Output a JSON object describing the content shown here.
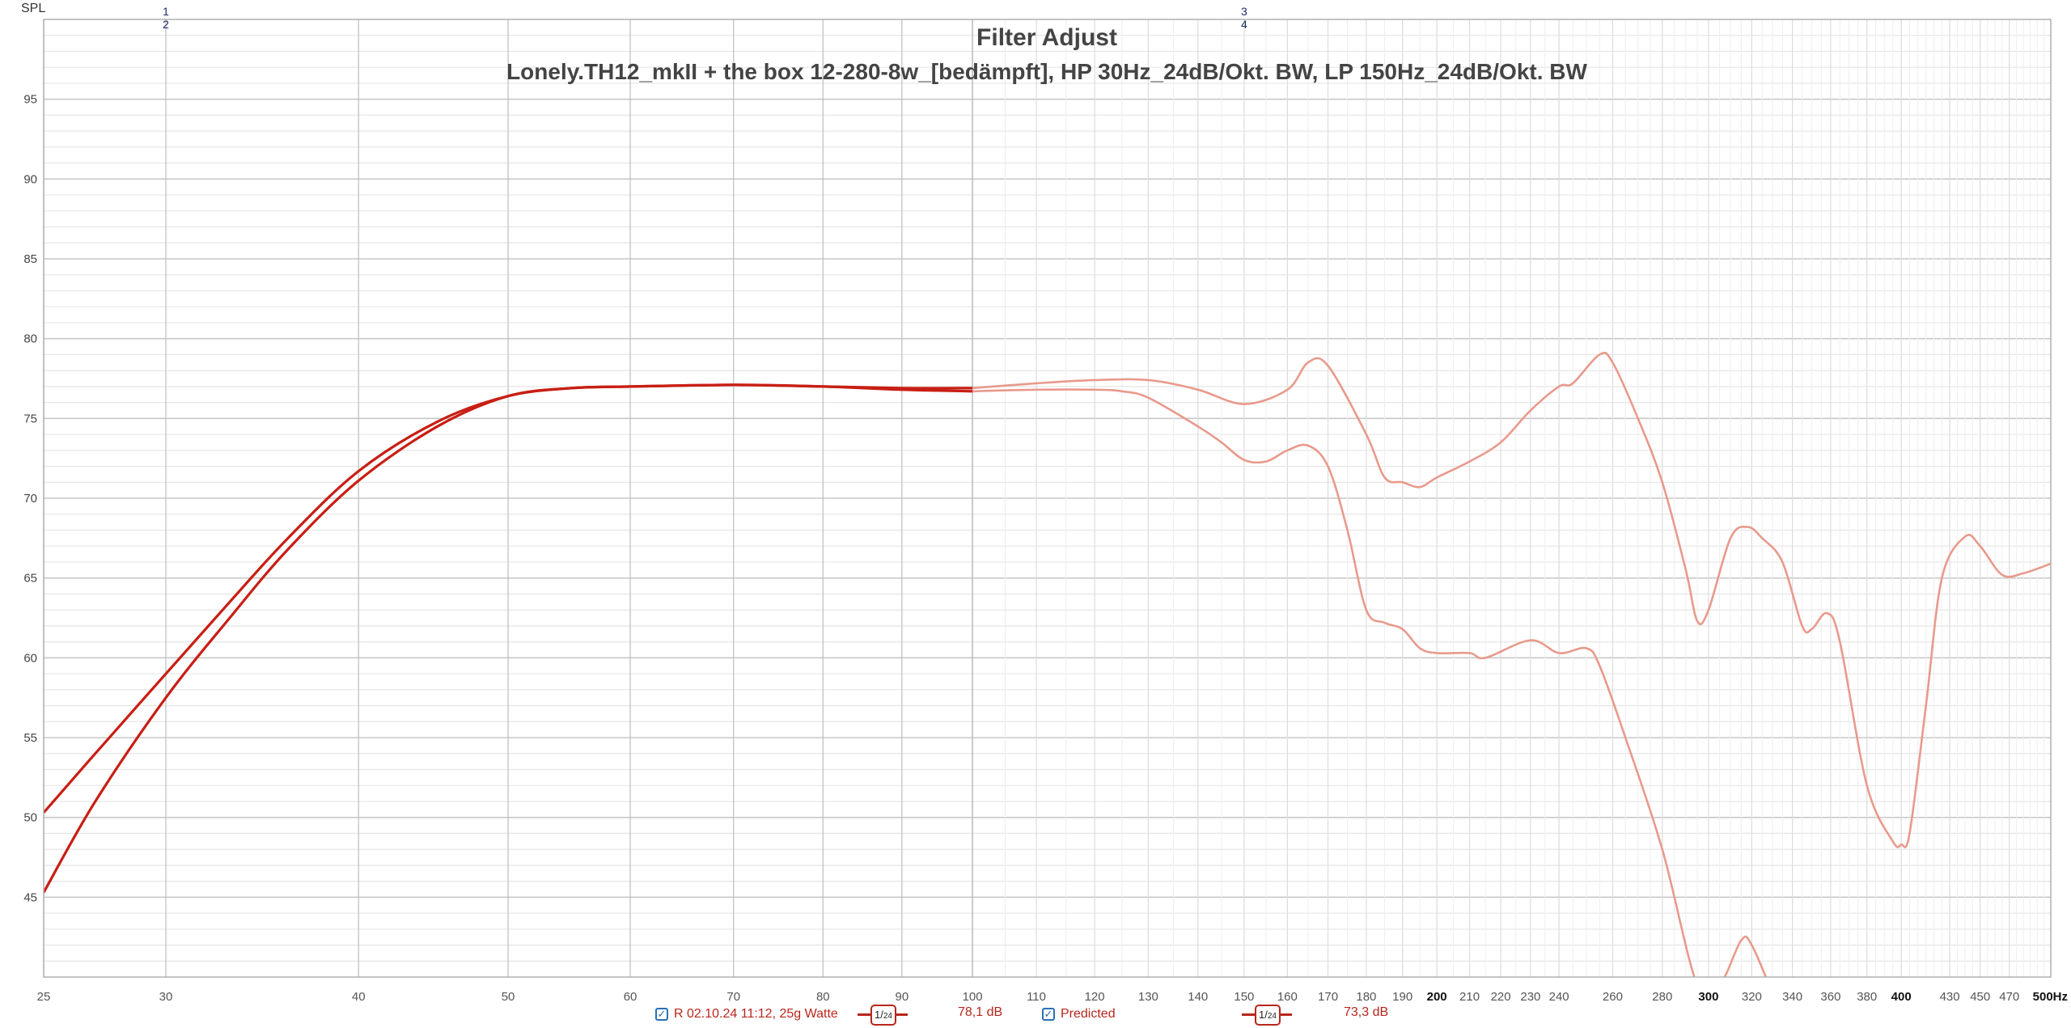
{
  "chart_data": {
    "type": "line",
    "title": "Filter Adjust",
    "subtitle": "Lonely.TH12_mkII + the box 12-280-8w_[bedämpft], HP 30Hz_24dB/Okt. BW, LP 150Hz_24dB/Okt. BW",
    "ylabel": "SPL",
    "xlabel": "",
    "x_scale": "log",
    "xlim": [
      25,
      500
    ],
    "ylim": [
      40,
      100
    ],
    "grid": true,
    "y_ticks": [
      45,
      50,
      55,
      60,
      65,
      70,
      75,
      80,
      85,
      90,
      95
    ],
    "x_ticks": [
      {
        "v": 25,
        "label": "25"
      },
      {
        "v": 30,
        "label": "30"
      },
      {
        "v": 40,
        "label": "40"
      },
      {
        "v": 50,
        "label": "50"
      },
      {
        "v": 60,
        "label": "60"
      },
      {
        "v": 70,
        "label": "70"
      },
      {
        "v": 80,
        "label": "80"
      },
      {
        "v": 90,
        "label": "90"
      },
      {
        "v": 100,
        "label": "100"
      },
      {
        "v": 110,
        "label": "110"
      },
      {
        "v": 120,
        "label": "120"
      },
      {
        "v": 130,
        "label": "130"
      },
      {
        "v": 140,
        "label": "140"
      },
      {
        "v": 150,
        "label": "150"
      },
      {
        "v": 160,
        "label": "160"
      },
      {
        "v": 170,
        "label": "170"
      },
      {
        "v": 180,
        "label": "180"
      },
      {
        "v": 190,
        "label": "190"
      },
      {
        "v": 200,
        "label": "200",
        "bold": true
      },
      {
        "v": 210,
        "label": "210"
      },
      {
        "v": 220,
        "label": "220"
      },
      {
        "v": 230,
        "label": "230"
      },
      {
        "v": 240,
        "label": "240"
      },
      {
        "v": 260,
        "label": "260"
      },
      {
        "v": 280,
        "label": "280"
      },
      {
        "v": 300,
        "label": "300",
        "bold": true
      },
      {
        "v": 320,
        "label": "320"
      },
      {
        "v": 340,
        "label": "340"
      },
      {
        "v": 360,
        "label": "360"
      },
      {
        "v": 380,
        "label": "380"
      },
      {
        "v": 400,
        "label": "400",
        "bold": true
      },
      {
        "v": 430,
        "label": "430"
      },
      {
        "v": 450,
        "label": "450"
      },
      {
        "v": 470,
        "label": "470"
      },
      {
        "v": 500,
        "label": "500Hz",
        "bold": true
      }
    ],
    "cursors": [
      {
        "freq": 30,
        "labels": [
          "1",
          "2"
        ]
      },
      {
        "freq": 150,
        "labels": [
          "3",
          "4"
        ]
      }
    ],
    "series": [
      {
        "name": "R 02.10.24 11:12, 25g Watte",
        "smoothing": "1/24",
        "level": "78,1 dB",
        "x": [
          25,
          27,
          30,
          33,
          36,
          40,
          45,
          50,
          55,
          60,
          70,
          80,
          90,
          100,
          110,
          120,
          130,
          140,
          150,
          160,
          165,
          170,
          180,
          185,
          190,
          195,
          200,
          210,
          220,
          230,
          240,
          245,
          255,
          260,
          270,
          280,
          290,
          295,
          300,
          310,
          318,
          325,
          335,
          345,
          350,
          358,
          365,
          380,
          395,
          400,
          405,
          415,
          425,
          440,
          450,
          465,
          480,
          500
        ],
        "y": [
          50.3,
          54,
          59,
          63.5,
          67.5,
          71.7,
          74.8,
          76.4,
          76.9,
          77,
          77.1,
          77,
          76.9,
          76.9,
          77.2,
          77.4,
          77.4,
          76.8,
          75.9,
          76.8,
          78.5,
          78.3,
          74,
          71.3,
          71,
          70.7,
          71.3,
          72.3,
          73.5,
          75.5,
          77,
          77.2,
          79,
          78.5,
          75,
          71,
          65.5,
          62.3,
          63,
          67.5,
          68.2,
          67.5,
          66,
          62,
          61.8,
          62.8,
          61,
          52,
          48.5,
          48.3,
          49,
          57,
          65,
          67.6,
          67,
          65.2,
          65.3,
          65.9
        ]
      },
      {
        "name": "Predicted",
        "smoothing": "1/24",
        "level": "73,3 dB",
        "x": [
          25,
          27,
          30,
          33,
          36,
          40,
          45,
          50,
          55,
          60,
          70,
          80,
          90,
          100,
          110,
          120,
          125,
          130,
          140,
          145,
          150,
          155,
          160,
          165,
          170,
          175,
          180,
          185,
          190,
          195,
          200,
          210,
          215,
          230,
          240,
          250,
          255,
          265,
          280,
          295,
          305,
          315,
          320,
          330,
          340
        ],
        "y": [
          45.3,
          51,
          57.5,
          62.5,
          66.8,
          71.1,
          74.5,
          76.4,
          76.9,
          77,
          77.1,
          77,
          76.8,
          76.7,
          76.8,
          76.8,
          76.7,
          76.3,
          74.5,
          73.5,
          72.4,
          72.3,
          73,
          73.3,
          72,
          68,
          63,
          62.2,
          61.8,
          60.6,
          60.3,
          60.3,
          60,
          61.1,
          60.3,
          60.6,
          59.5,
          55,
          48,
          39.5,
          39.5,
          42.3,
          42,
          39,
          36
        ]
      }
    ],
    "colors": {
      "curve_in_range": "#c81e14",
      "curve_out_of_range": "#e89a8c",
      "grid_major": "#c8c8c8",
      "grid_minor": "#e6e6e6",
      "cursor_label": "#1a2a6a"
    }
  },
  "legend": [
    {
      "checked": true,
      "check_icon": "checkmark-icon",
      "name": "R 02.10.24 11:12, 25g Watte",
      "smoothing_num": "1",
      "smoothing_den": "24",
      "level": "78,1 dB"
    },
    {
      "checked": true,
      "check_icon": "checkmark-icon",
      "name": "Predicted",
      "smoothing_num": "1",
      "smoothing_den": "24",
      "level": "73,3 dB"
    }
  ]
}
